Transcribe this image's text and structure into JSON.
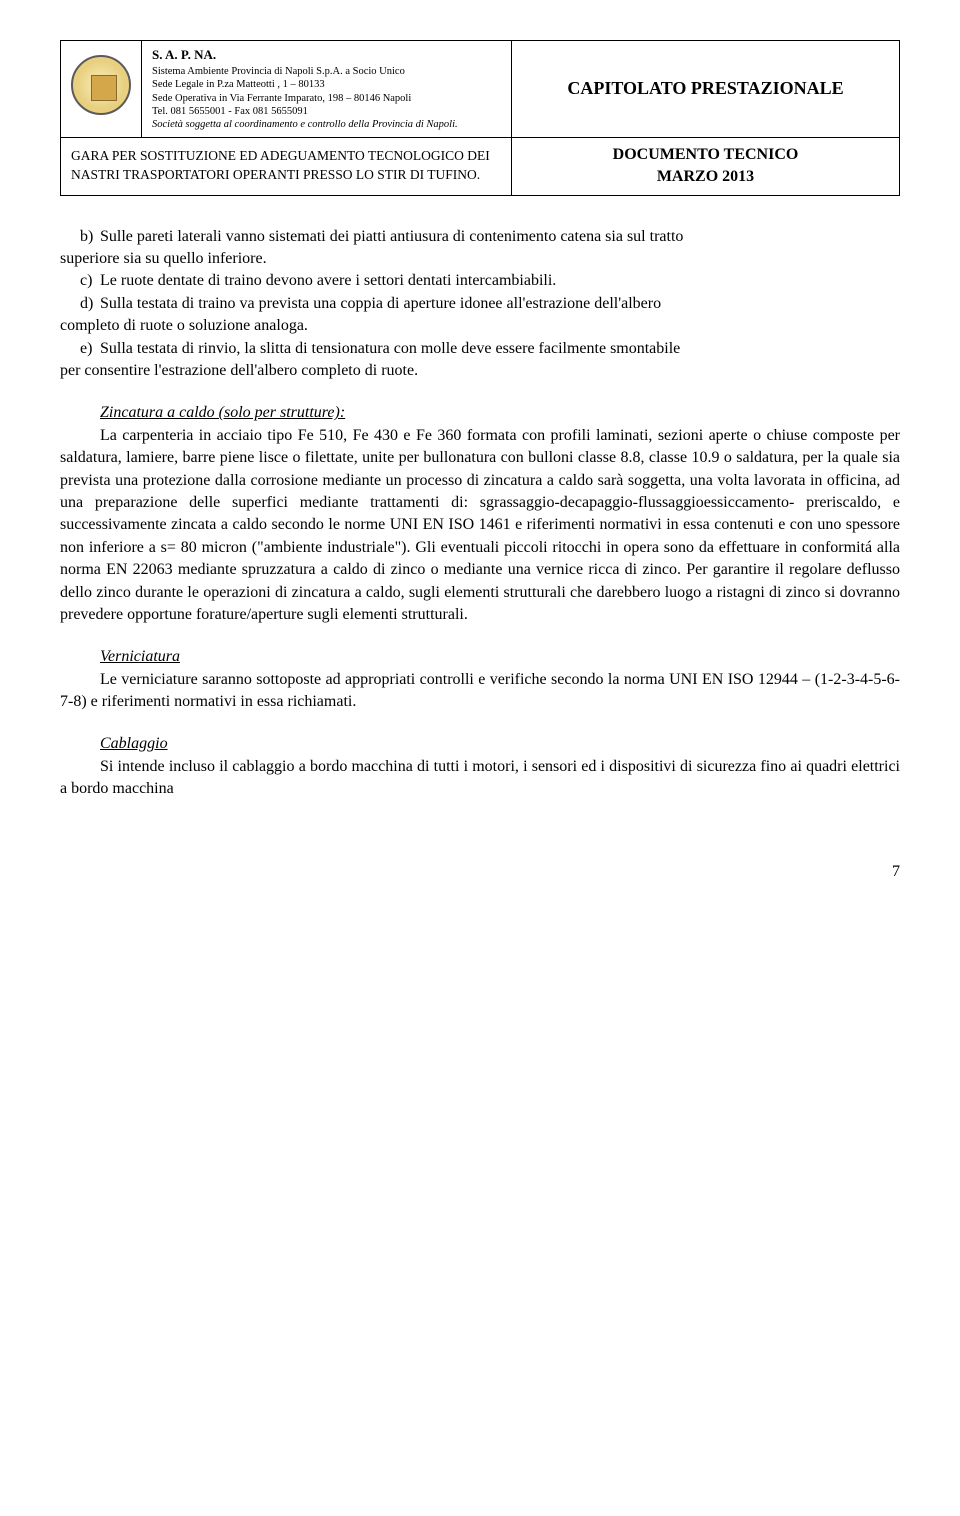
{
  "header": {
    "org_name": "S. A. P. NA.",
    "org_line1": "Sistema Ambiente Provincia di Napoli  S.p.A.  a Socio Unico",
    "org_line2": "Sede Legale in P.za Matteotti , 1 – 80133",
    "org_line3": "Sede Operativa in Via Ferrante Imparato, 198 – 80146 Napoli",
    "org_line4": "Tel. 081 5655001 - Fax 081 5655091",
    "org_line5": "Società soggetta al coordinamento e controllo della Provincia di Napoli.",
    "cap_title": "CAPITOLATO PRESTAZIONALE",
    "gara_text": "GARA PER SOSTITUZIONE ED ADEGUAMENTO TECNOLOGICO DEI NASTRI TRASPORTATORI OPERANTI PRESSO LO STIR DI TUFINO.",
    "doc_line1": "DOCUMENTO TECNICO",
    "doc_line2": "MARZO 2013"
  },
  "clauses": {
    "b_label": "b)",
    "b_text": "Sulle pareti laterali vanno sistemati dei piatti antiusura di contenimento catena sia sul tratto",
    "b_cont": "superiore sia su quello inferiore.",
    "c_label": "c)",
    "c_text": "Le ruote dentate di traino devono avere i settori dentati intercambiabili.",
    "d_label": "d)",
    "d_text": "Sulla testata di traino va prevista una coppia di aperture idonee all'estrazione dell'albero",
    "d_cont": "completo di ruote o soluzione analoga.",
    "e_label": "e)",
    "e_text": "Sulla testata di rinvio, la slitta di tensionatura con molle deve essere facilmente smontabile",
    "e_cont": "per consentire l'estrazione dell'albero completo di ruote."
  },
  "sections": {
    "zincatura_title": "Zincatura a caldo (solo per strutture):",
    "zincatura_body": "La carpenteria in acciaio tipo Fe 510, Fe 430 e Fe 360 formata con profili laminati, sezioni aperte o chiuse composte per saldatura, lamiere, barre piene lisce o filettate, unite per bullonatura con bulloni classe 8.8, classe 10.9 o saldatura, per la quale sia prevista una protezione dalla corrosione mediante un processo di zincatura a caldo sarà soggetta, una volta lavorata in officina, ad una preparazione delle superfici mediante trattamenti di: sgrassaggio-decapaggio-flussaggioessiccamento- preriscaldo, e successivamente zincata a caldo secondo le norme UNI EN ISO 1461 e riferimenti normativi in essa contenuti e con uno spessore non inferiore a s= 80 micron (\"ambiente industriale\"). Gli eventuali piccoli ritocchi in opera sono da effettuare in conformitá alla norma EN 22063 mediante spruzzatura a caldo di zinco o mediante una vernice ricca di zinco. Per garantire il regolare deflusso dello zinco durante le operazioni di zincatura a caldo, sugli elementi strutturali che darebbero luogo a ristagni di zinco si dovranno prevedere opportune forature/aperture sugli elementi strutturali.",
    "verniciatura_title": "Verniciatura",
    "verniciatura_body": "Le verniciature saranno sottoposte ad appropriati controlli e verifiche secondo la norma UNI EN ISO 12944 – (1-2-3-4-5-6-7-8) e riferimenti normativi in essa richiamati.",
    "cablaggio_title": "Cablaggio",
    "cablaggio_body": "Si intende incluso il cablaggio a bordo macchina di tutti i motori, i sensori ed i dispositivi di sicurezza fino ai quadri elettrici a bordo macchina"
  },
  "page_number": "7"
}
